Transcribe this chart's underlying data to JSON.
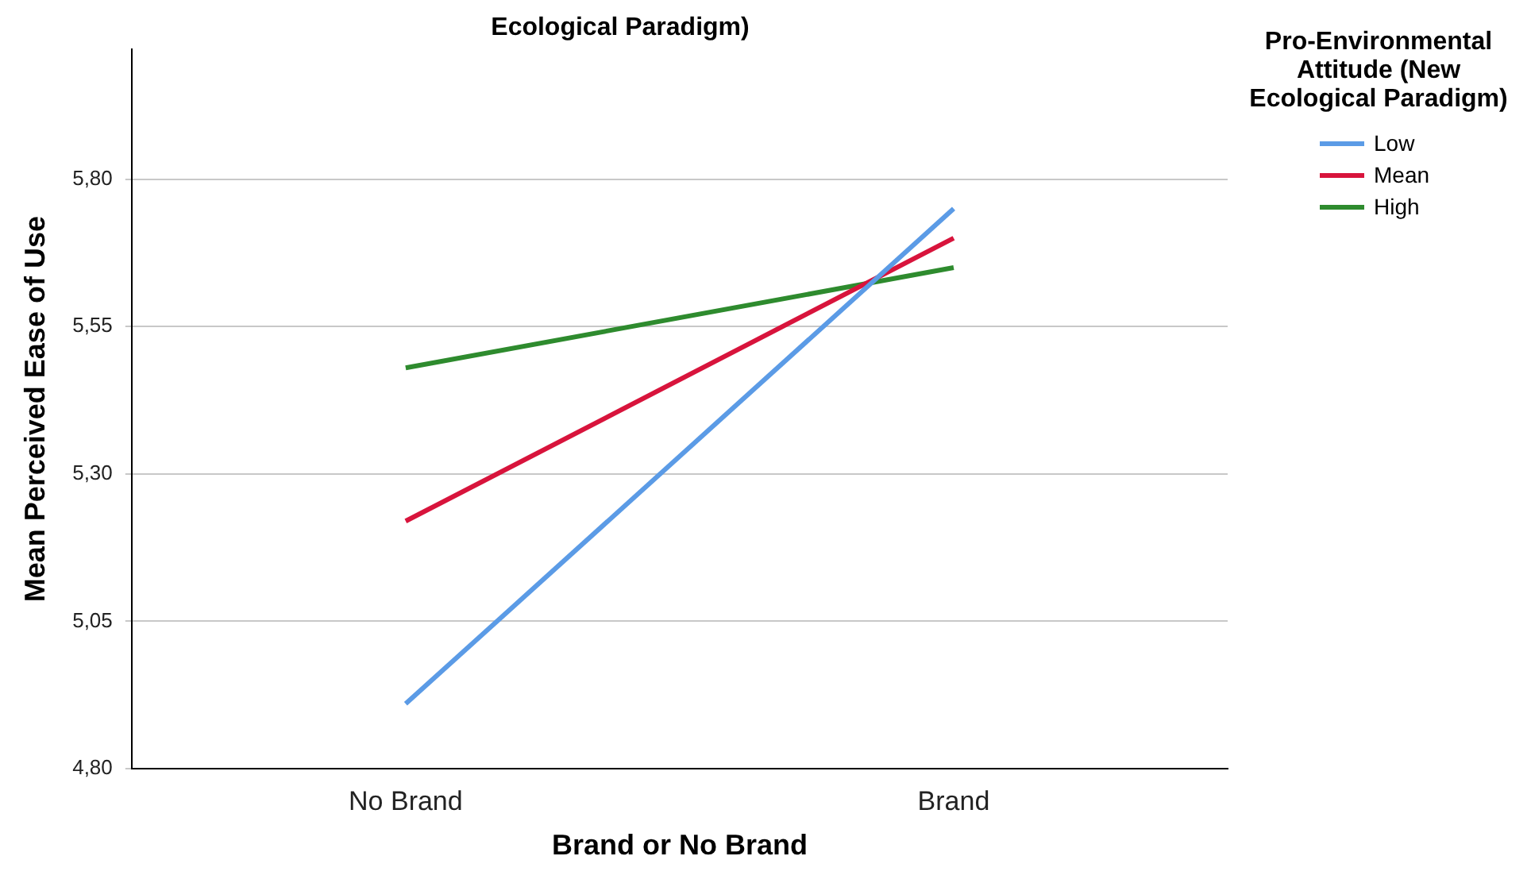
{
  "chart_data": {
    "type": "line",
    "title": "Ecological Paradigm)",
    "xlabel": "Brand or No Brand",
    "ylabel": "Mean Perceived Ease of Use",
    "legend_title": "Pro-Environmental Attitude (New Ecological Paradigm)",
    "categories": [
      "No Brand",
      "Brand"
    ],
    "series": [
      {
        "name": "Low",
        "color": "#5b9be6",
        "values": [
          4.91,
          5.75
        ]
      },
      {
        "name": "Mean",
        "color": "#d8143c",
        "values": [
          5.22,
          5.7
        ]
      },
      {
        "name": "High",
        "color": "#2e8b2e",
        "values": [
          5.48,
          5.65
        ]
      }
    ],
    "ylim": [
      4.8,
      6.02
    ],
    "yticks": [
      {
        "value": 4.8,
        "label": "4,80"
      },
      {
        "value": 5.05,
        "label": "5,05"
      },
      {
        "value": 5.3,
        "label": "5,30"
      },
      {
        "value": 5.55,
        "label": "5,55"
      },
      {
        "value": 5.8,
        "label": "5,80"
      }
    ],
    "grid": "y",
    "legend": "right",
    "marker": "none",
    "line_style": "solid"
  }
}
